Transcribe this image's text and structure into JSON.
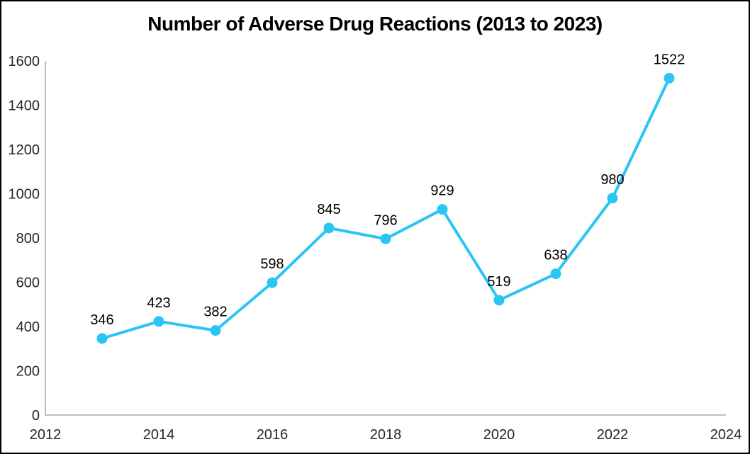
{
  "chart": {
    "title": "Number of Adverse Drug Reactions (2013 to 2023)"
  },
  "chart_data": {
    "type": "line",
    "title": "Number of Adverse Drug Reactions (2013 to 2023)",
    "x": [
      2013,
      2014,
      2015,
      2016,
      2017,
      2018,
      2019,
      2020,
      2021,
      2022,
      2023
    ],
    "series": [
      {
        "name": "Adverse Drug Reactions",
        "values": [
          346,
          423,
          382,
          598,
          845,
          796,
          929,
          519,
          638,
          980,
          1522
        ]
      }
    ],
    "data_labels": [
      346,
      423,
      382,
      598,
      845,
      796,
      929,
      519,
      638,
      980,
      1522
    ],
    "xlabel": "",
    "ylabel": "",
    "xlim": [
      2012,
      2024
    ],
    "ylim": [
      0,
      1600
    ],
    "xticks": [
      2012,
      2014,
      2016,
      2018,
      2020,
      2022,
      2024
    ],
    "yticks": [
      0,
      200,
      400,
      600,
      800,
      1000,
      1200,
      1400,
      1600
    ],
    "grid": false,
    "legend": false,
    "colors": {
      "line": "#2BC5F4",
      "marker": "#2BC5F4",
      "axis": "#BFBFBF",
      "tick_text": "#262626",
      "data_label_text": "#000000",
      "frame_border": "#000000"
    }
  }
}
